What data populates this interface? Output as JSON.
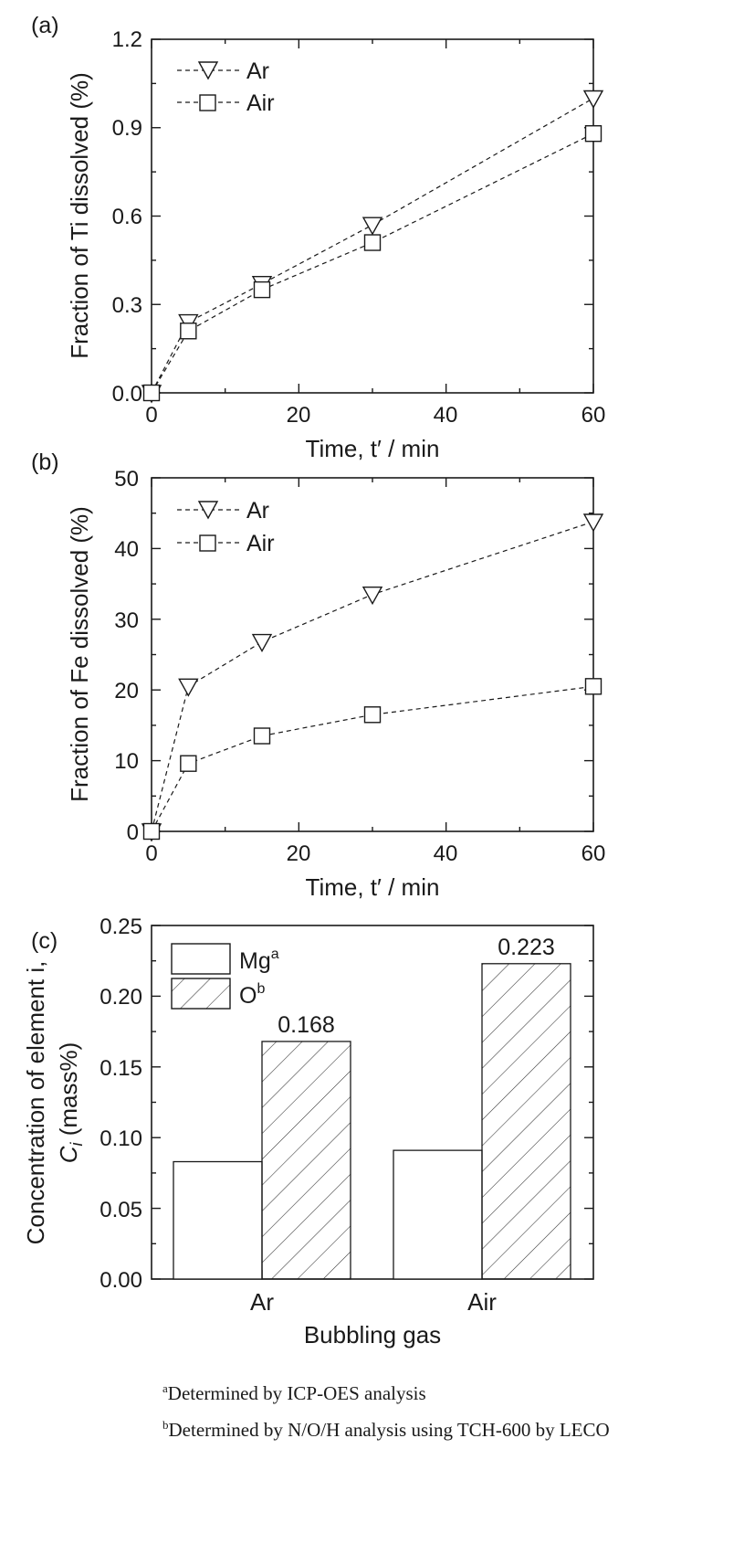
{
  "chart_data": [
    {
      "type": "line",
      "panel_label": "(a)",
      "xlabel": "Time, t′ / min",
      "ylabel": "Fraction of Ti dissolved (%)",
      "xlim": [
        0,
        60
      ],
      "ylim": [
        0,
        1.2
      ],
      "xticks": [
        "0",
        "20",
        "40",
        "60"
      ],
      "yticks": [
        "0.0",
        "0.3",
        "0.6",
        "0.9",
        "1.2"
      ],
      "x": [
        0,
        5,
        15,
        30,
        60
      ],
      "series": [
        {
          "name": "Ar",
          "marker": "triangle-down",
          "values": [
            0,
            0.24,
            0.37,
            0.57,
            1.0
          ]
        },
        {
          "name": "Air",
          "marker": "square",
          "values": [
            0,
            0.21,
            0.35,
            0.51,
            0.88
          ]
        }
      ]
    },
    {
      "type": "line",
      "panel_label": "(b)",
      "xlabel": "Time, t′ / min",
      "ylabel": "Fraction of Fe dissolved (%)",
      "xlim": [
        0,
        60
      ],
      "ylim": [
        0,
        50
      ],
      "xticks": [
        "0",
        "20",
        "40",
        "60"
      ],
      "yticks": [
        "0",
        "10",
        "20",
        "30",
        "40",
        "50"
      ],
      "x": [
        0,
        5,
        15,
        30,
        60
      ],
      "series": [
        {
          "name": "Ar",
          "marker": "triangle-down",
          "values": [
            0,
            20.5,
            26.8,
            33.5,
            43.8
          ]
        },
        {
          "name": "Air",
          "marker": "square",
          "values": [
            0,
            9.6,
            13.5,
            16.5,
            20.5
          ]
        }
      ]
    },
    {
      "type": "bar",
      "panel_label": "(c)",
      "xlabel": "Bubbling gas",
      "ylabel_line1": "Concentration of element i,",
      "ylabel_line2": "C",
      "ylabel_sub": "i",
      "ylabel_unit": " (mass%)",
      "ylim": [
        0,
        0.25
      ],
      "yticks": [
        "0.00",
        "0.05",
        "0.10",
        "0.15",
        "0.20",
        "0.25"
      ],
      "categories": [
        "Ar",
        "Air"
      ],
      "series": [
        {
          "name": "Mg",
          "sup": "a",
          "values": [
            0.083,
            0.091
          ],
          "hatch": false
        },
        {
          "name": "O",
          "sup": "b",
          "values": [
            0.168,
            0.223
          ],
          "hatch": true
        }
      ],
      "data_labels": [
        "0.168",
        "0.223"
      ]
    }
  ],
  "footnotes": [
    {
      "sup": "a",
      "text": "Determined by ICP-OES analysis"
    },
    {
      "sup": "b",
      "text": "Determined by N/O/H analysis using TCH-600 by LECO"
    }
  ]
}
